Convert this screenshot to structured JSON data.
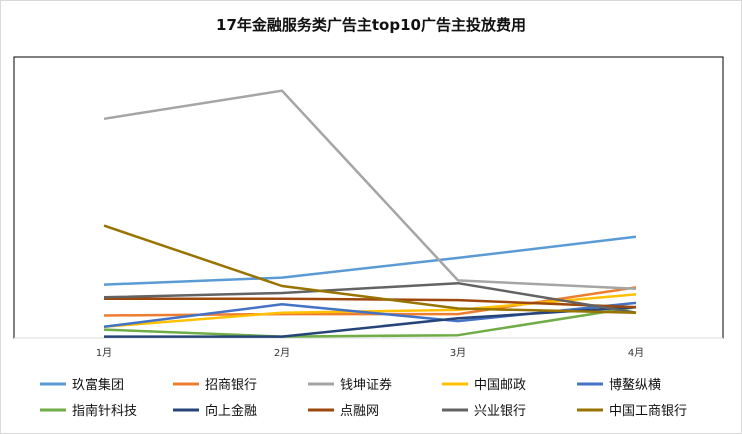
{
  "chart_data": {
    "type": "line",
    "title": "17年金融服务类广告主top10广告主投放费用",
    "categories": [
      "1月",
      "2月",
      "3月",
      "4月"
    ],
    "ylim": [
      0,
      100
    ],
    "grid": false,
    "legend": "bottom",
    "series": [
      {
        "name": "玖富集团",
        "color": "#5B9BD5",
        "values": [
          19,
          21.5,
          28.5,
          36
        ]
      },
      {
        "name": "招商银行",
        "color": "#ED7D31",
        "values": [
          8,
          8.5,
          8.5,
          18
        ]
      },
      {
        "name": "钱坤证券",
        "color": "#A5A5A5",
        "values": [
          78,
          88,
          20.5,
          17.5
        ]
      },
      {
        "name": "中国邮政",
        "color": "#FFC000",
        "values": [
          4,
          9,
          10,
          15.5
        ]
      },
      {
        "name": "博鳌纵横",
        "color": "#4472C4",
        "values": [
          4,
          12,
          6,
          12.5
        ]
      },
      {
        "name": "指南针科技",
        "color": "#70AD47",
        "values": [
          3,
          0.5,
          1,
          11
        ]
      },
      {
        "name": "向上金融",
        "color": "#264478",
        "values": [
          0.5,
          0.5,
          7,
          11
        ]
      },
      {
        "name": "点融网",
        "color": "#9E480E",
        "values": [
          14,
          14,
          13.5,
          11
        ]
      },
      {
        "name": "兴业银行",
        "color": "#636363",
        "values": [
          14.5,
          16,
          19.5,
          9
        ]
      },
      {
        "name": "中国工商银行",
        "color": "#997300",
        "values": [
          40,
          18.5,
          10.5,
          9
        ]
      }
    ]
  }
}
